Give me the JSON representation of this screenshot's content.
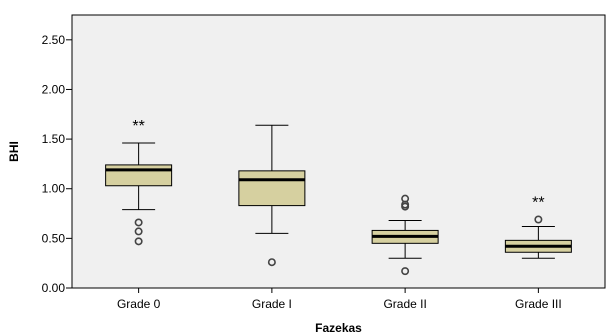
{
  "chart_data": {
    "type": "boxplot",
    "xlabel": "Fazekas",
    "ylabel": "BHI",
    "ylim": [
      0,
      2.75
    ],
    "yticks": [
      {
        "value": 0.0,
        "label": "0.00"
      },
      {
        "value": 0.5,
        "label": "0.50"
      },
      {
        "value": 1.0,
        "label": "1.00"
      },
      {
        "value": 1.5,
        "label": "1.50"
      },
      {
        "value": 2.0,
        "label": "2.00"
      },
      {
        "value": 2.5,
        "label": "2.50"
      }
    ],
    "categories": [
      "Grade 0",
      "Grade I",
      "Grade II",
      "Grade III"
    ],
    "boxes": [
      {
        "category": "Grade 0",
        "whisker_low": 0.79,
        "q1": 1.03,
        "median": 1.19,
        "q3": 1.24,
        "whisker_high": 1.46,
        "outliers": [
          0.66,
          0.57,
          0.47
        ],
        "annotation": "**"
      },
      {
        "category": "Grade I",
        "whisker_low": 0.55,
        "q1": 0.83,
        "median": 1.09,
        "q3": 1.18,
        "whisker_high": 1.64,
        "outliers": [
          0.26
        ],
        "annotation": ""
      },
      {
        "category": "Grade II",
        "whisker_low": 0.3,
        "q1": 0.45,
        "median": 0.52,
        "q3": 0.58,
        "whisker_high": 0.68,
        "outliers": [
          0.9,
          0.84,
          0.82,
          0.17
        ],
        "annotation": ""
      },
      {
        "category": "Grade III",
        "whisker_low": 0.3,
        "q1": 0.36,
        "median": 0.42,
        "q3": 0.48,
        "whisker_high": 0.62,
        "outliers": [
          0.69
        ],
        "annotation": "**"
      }
    ],
    "colors": {
      "box_fill": "#d6d0a0",
      "plot_background": "#f0f0f0",
      "stroke": "#000000",
      "outlier_stroke": "#444444"
    }
  }
}
